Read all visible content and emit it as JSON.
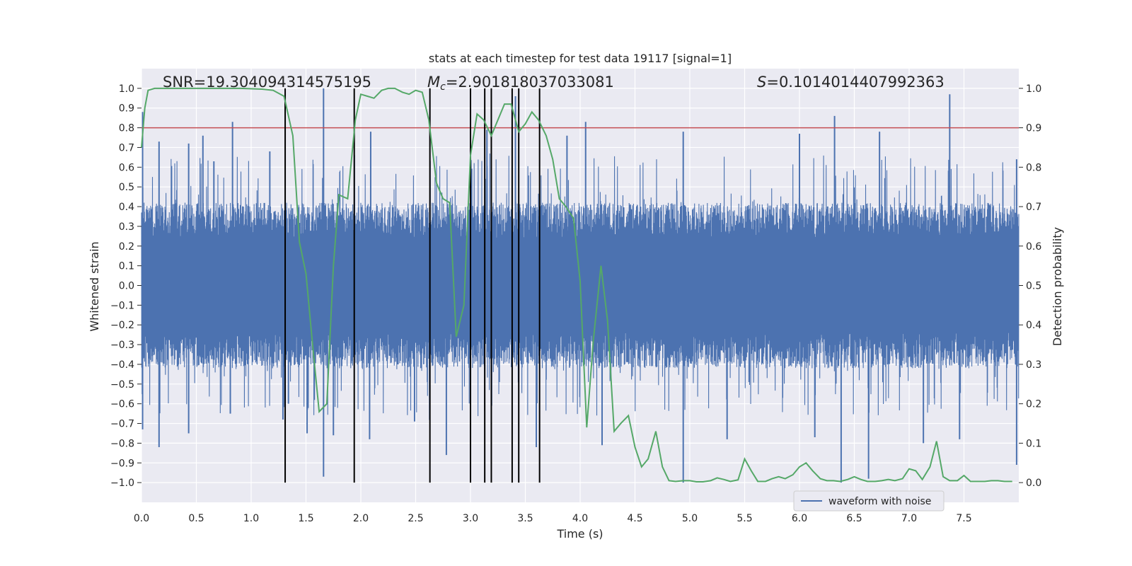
{
  "chart_data": {
    "type": "line",
    "title": "stats at each timestep for test data 19117 [signal=1]",
    "xlabel": "Time (s)",
    "ylabel": "Whitened strain",
    "y2label": "Detection probability",
    "xlim": [
      0,
      8.0
    ],
    "ylim": [
      -1.1,
      1.1
    ],
    "y2lim": [
      -0.05,
      1.05
    ],
    "x_ticks": [
      0.0,
      0.5,
      1.0,
      1.5,
      2.0,
      2.5,
      3.0,
      3.5,
      4.0,
      4.5,
      5.0,
      5.5,
      6.0,
      6.5,
      7.0,
      7.5
    ],
    "x_tick_labels": [
      "0.0",
      "0.5",
      "1.0",
      "1.5",
      "2.0",
      "2.5",
      "3.0",
      "3.5",
      "4.0",
      "4.5",
      "5.0",
      "5.5",
      "6.0",
      "6.5",
      "7.0",
      "7.5"
    ],
    "y_ticks": [
      1.0,
      0.9,
      0.8,
      0.7,
      0.6,
      0.5,
      0.4,
      0.3,
      0.2,
      0.1,
      0.0,
      -0.1,
      -0.2,
      -0.3,
      -0.4,
      -0.5,
      -0.6,
      -0.7,
      -0.8,
      -0.9,
      -1.0
    ],
    "y_tick_labels": [
      "1.0",
      "0.9",
      "0.8",
      "0.7",
      "0.6",
      "0.5",
      "0.4",
      "0.3",
      "0.2",
      "0.1",
      "0.0",
      "−0.1",
      "−0.2",
      "−0.3",
      "−0.4",
      "−0.5",
      "−0.6",
      "−0.7",
      "−0.8",
      "−0.9",
      "−1.0"
    ],
    "y2_ticks": [
      1.0,
      0.9,
      0.8,
      0.7,
      0.6,
      0.5,
      0.4,
      0.3,
      0.2,
      0.1,
      0.0
    ],
    "y2_tick_labels": [
      "1.0",
      "0.9",
      "0.8",
      "0.7",
      "0.6",
      "0.5",
      "0.4",
      "0.3",
      "0.2",
      "0.1",
      "0.0"
    ],
    "grid": true,
    "background": "#eaeaf2",
    "threshold": {
      "value": 0.9,
      "axis": "right",
      "color": "#c44e52"
    },
    "vertical_lines_x": [
      1.31,
      1.94,
      2.63,
      3.0,
      3.13,
      3.19,
      3.38,
      3.44,
      3.63
    ],
    "vertical_lines_range": [
      -1.0,
      1.0
    ],
    "annotations": {
      "snr": "SNR=19.304094314575195",
      "mc_symbol": "M",
      "mc_sub": "c",
      "mc_value": "=2.901818037033081",
      "s_symbol": "S",
      "s_value": "=0.1014014407992363"
    },
    "series": [
      {
        "name": "waveform with noise",
        "axis": "left",
        "color": "#4c72b0",
        "envelope_points": {
          "x": [
            0.0,
            1.0,
            2.0,
            3.0,
            4.0,
            5.0,
            6.0,
            7.0,
            8.0
          ],
          "bulk": [
            0.4,
            0.4,
            0.4,
            0.4,
            0.4,
            0.4,
            0.4,
            0.4,
            0.4
          ],
          "peak": [
            0.6,
            0.6,
            0.62,
            0.62,
            0.6,
            0.6,
            0.6,
            0.6,
            0.6
          ]
        },
        "spikes": [
          {
            "x": 0.01,
            "y": 0.88
          },
          {
            "x": 0.01,
            "y": -0.73
          },
          {
            "x": 0.16,
            "y": 0.73
          },
          {
            "x": 0.16,
            "y": -0.82
          },
          {
            "x": 0.43,
            "y": 0.72
          },
          {
            "x": 0.43,
            "y": -0.75
          },
          {
            "x": 0.56,
            "y": 0.76
          },
          {
            "x": 0.66,
            "y": 0.63
          },
          {
            "x": 0.83,
            "y": 0.83
          },
          {
            "x": 0.81,
            "y": -0.65
          },
          {
            "x": 1.17,
            "y": 0.68
          },
          {
            "x": 1.29,
            "y": -0.68
          },
          {
            "x": 1.34,
            "y": -0.6
          },
          {
            "x": 1.66,
            "y": 1.0
          },
          {
            "x": 1.66,
            "y": -0.97
          },
          {
            "x": 1.51,
            "y": -0.75
          },
          {
            "x": 1.75,
            "y": -0.76
          },
          {
            "x": 2.09,
            "y": 0.78
          },
          {
            "x": 2.08,
            "y": -0.78
          },
          {
            "x": 2.49,
            "y": -0.69
          },
          {
            "x": 2.78,
            "y": -0.86
          },
          {
            "x": 3.0,
            "y": 0.8
          },
          {
            "x": 3.15,
            "y": 0.79
          },
          {
            "x": 3.41,
            "y": 0.96
          },
          {
            "x": 3.6,
            "y": -0.82
          },
          {
            "x": 3.88,
            "y": 0.76
          },
          {
            "x": 4.05,
            "y": 0.83
          },
          {
            "x": 4.2,
            "y": -0.81
          },
          {
            "x": 4.94,
            "y": 0.78
          },
          {
            "x": 4.94,
            "y": -1.0
          },
          {
            "x": 5.34,
            "y": -0.78
          },
          {
            "x": 6.0,
            "y": 0.77
          },
          {
            "x": 6.14,
            "y": -0.77
          },
          {
            "x": 6.32,
            "y": 0.86
          },
          {
            "x": 6.38,
            "y": -1.0
          },
          {
            "x": 6.63,
            "y": -0.98
          },
          {
            "x": 6.73,
            "y": 0.78
          },
          {
            "x": 7.13,
            "y": -0.8
          },
          {
            "x": 7.37,
            "y": 0.97
          },
          {
            "x": 7.46,
            "y": -0.78
          },
          {
            "x": 7.98,
            "y": -0.91
          },
          {
            "x": 7.98,
            "y": 0.64
          }
        ]
      },
      {
        "name": "detection probability",
        "axis": "right",
        "color": "#55a868",
        "x": [
          0.0,
          0.03,
          0.06,
          0.12,
          0.3,
          0.6,
          0.9,
          1.1,
          1.2,
          1.3,
          1.38,
          1.44,
          1.5,
          1.56,
          1.62,
          1.69,
          1.75,
          1.8,
          1.88,
          1.95,
          2.0,
          2.06,
          2.12,
          2.19,
          2.25,
          2.31,
          2.38,
          2.44,
          2.5,
          2.56,
          2.62,
          2.69,
          2.75,
          2.81,
          2.87,
          2.94,
          3.0,
          3.06,
          3.12,
          3.19,
          3.25,
          3.31,
          3.37,
          3.44,
          3.5,
          3.56,
          3.62,
          3.69,
          3.75,
          3.81,
          3.87,
          3.94,
          4.0,
          4.06,
          4.12,
          4.19,
          4.25,
          4.31,
          4.37,
          4.44,
          4.5,
          4.56,
          4.62,
          4.69,
          4.75,
          4.81,
          4.87,
          4.94,
          5.0,
          5.06,
          5.12,
          5.19,
          5.25,
          5.31,
          5.37,
          5.44,
          5.5,
          5.56,
          5.62,
          5.69,
          5.75,
          5.81,
          5.87,
          5.94,
          6.0,
          6.06,
          6.12,
          6.19,
          6.25,
          6.31,
          6.37,
          6.44,
          6.5,
          6.56,
          6.62,
          6.69,
          6.75,
          6.81,
          6.87,
          6.94,
          7.0,
          7.06,
          7.12,
          7.19,
          7.25,
          7.31,
          7.37,
          7.44,
          7.5,
          7.56,
          7.62,
          7.69,
          7.75,
          7.81,
          7.87,
          7.94
        ],
        "values": [
          0.85,
          0.95,
          0.995,
          1.0,
          1.0,
          1.0,
          1.0,
          0.998,
          0.995,
          0.98,
          0.88,
          0.61,
          0.53,
          0.35,
          0.18,
          0.2,
          0.55,
          0.73,
          0.72,
          0.92,
          0.985,
          0.98,
          0.975,
          0.995,
          1.0,
          1.0,
          0.99,
          0.985,
          0.995,
          0.99,
          0.92,
          0.76,
          0.72,
          0.71,
          0.37,
          0.45,
          0.83,
          0.935,
          0.92,
          0.88,
          0.92,
          0.96,
          0.96,
          0.89,
          0.91,
          0.94,
          0.92,
          0.88,
          0.82,
          0.72,
          0.7,
          0.67,
          0.51,
          0.14,
          0.36,
          0.55,
          0.41,
          0.13,
          0.15,
          0.17,
          0.09,
          0.04,
          0.06,
          0.13,
          0.04,
          0.005,
          0.003,
          0.005,
          0.005,
          0.002,
          0.002,
          0.005,
          0.012,
          0.008,
          0.003,
          0.007,
          0.06,
          0.03,
          0.003,
          0.003,
          0.01,
          0.015,
          0.01,
          0.02,
          0.04,
          0.05,
          0.03,
          0.01,
          0.005,
          0.005,
          0.003,
          0.008,
          0.015,
          0.008,
          0.003,
          0.003,
          0.005,
          0.008,
          0.005,
          0.01,
          0.035,
          0.03,
          0.008,
          0.04,
          0.105,
          0.015,
          0.005,
          0.005,
          0.018,
          0.003,
          0.003,
          0.003,
          0.005,
          0.005,
          0.003,
          0.003
        ]
      }
    ],
    "legend": {
      "position": "lower-right",
      "entries": [
        "waveform with noise"
      ]
    }
  }
}
